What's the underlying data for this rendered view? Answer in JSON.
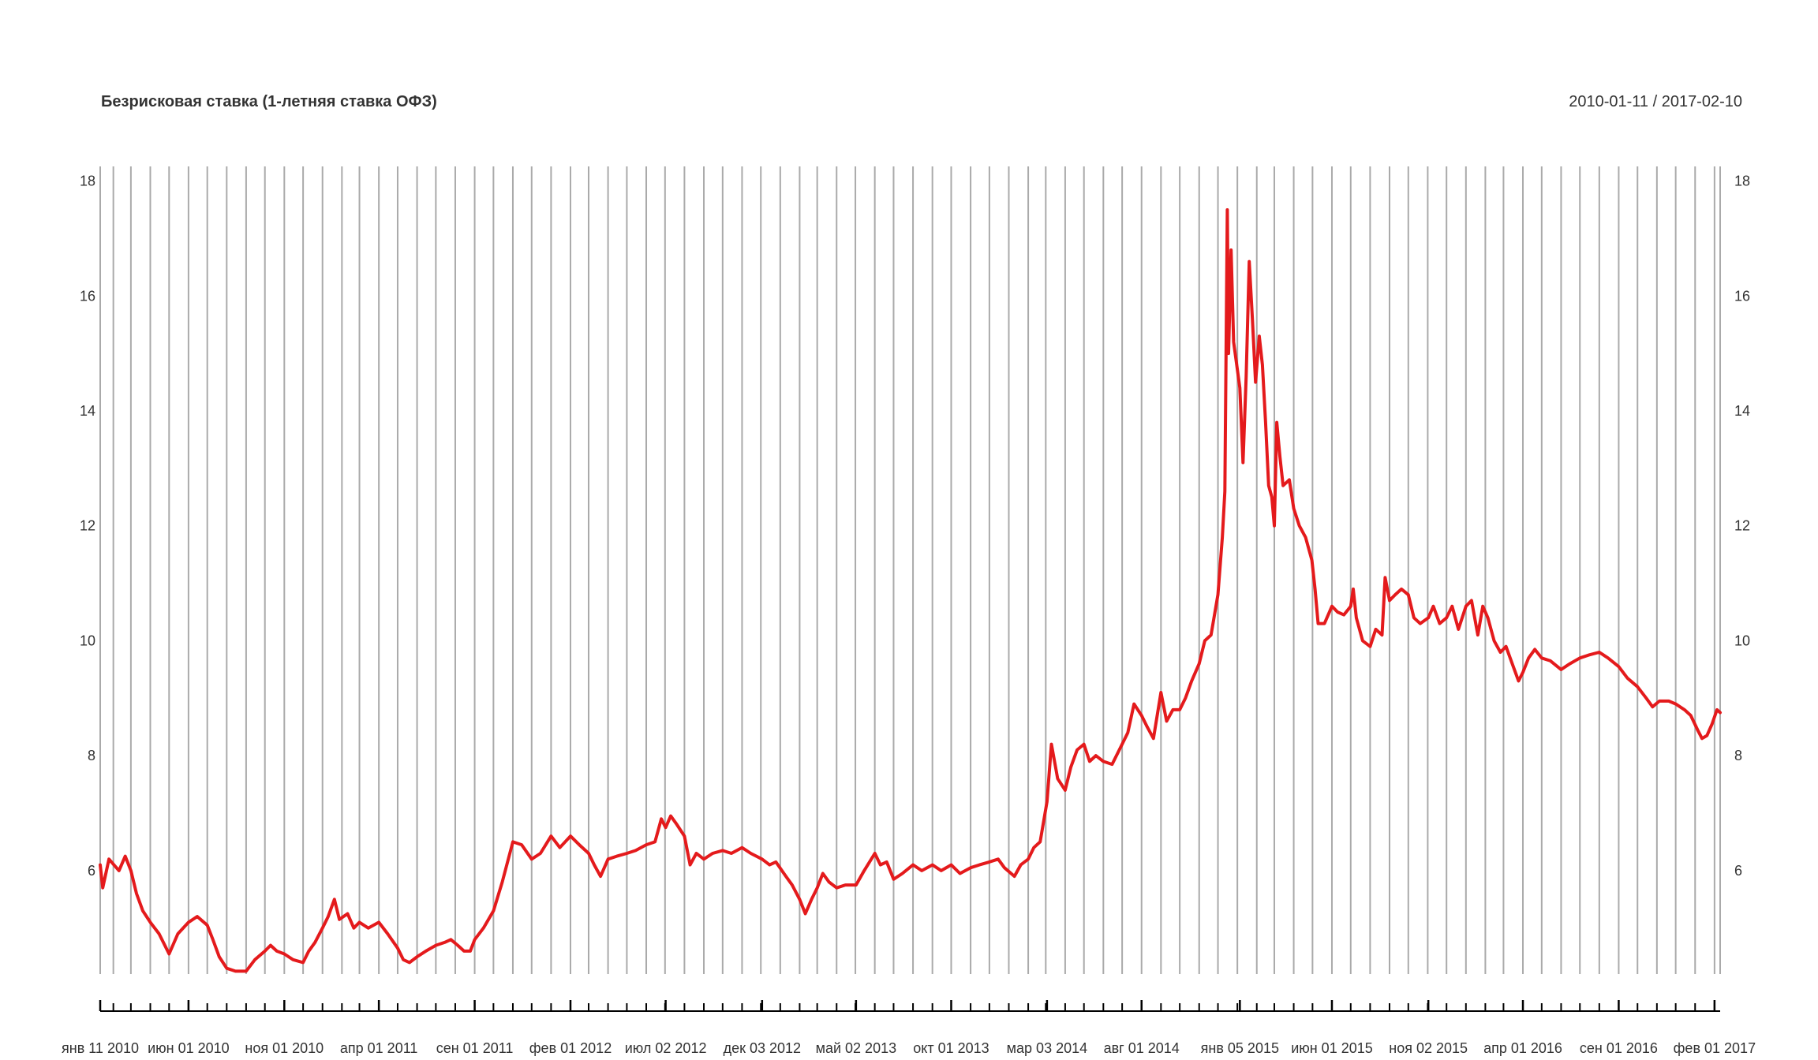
{
  "chart_data": {
    "type": "line",
    "title": "Безрисковая ставка (1-летняя ставка ОФЗ)",
    "subtitle": "2010-01-11 / 2017-02-10",
    "xlabel": "",
    "ylabel": "",
    "x_range": [
      "2010-01-11",
      "2017-02-10"
    ],
    "ylim": [
      4.2,
      18.2
    ],
    "yticks": [
      6,
      8,
      10,
      12,
      14,
      16,
      18
    ],
    "xticks": [
      {
        "date": "2010-01-11",
        "label": "янв 11 2010"
      },
      {
        "date": "2010-06-01",
        "label": "июн 01 2010"
      },
      {
        "date": "2010-11-01",
        "label": "ноя 01 2010"
      },
      {
        "date": "2011-04-01",
        "label": "апр 01 2011"
      },
      {
        "date": "2011-09-01",
        "label": "сен 01 2011"
      },
      {
        "date": "2012-02-01",
        "label": "фев 01 2012"
      },
      {
        "date": "2012-07-02",
        "label": "июл 02 2012"
      },
      {
        "date": "2012-12-03",
        "label": "дек 03 2012"
      },
      {
        "date": "2013-05-02",
        "label": "май 02 2013"
      },
      {
        "date": "2013-10-01",
        "label": "окт 01 2013"
      },
      {
        "date": "2014-03-03",
        "label": "мар 03 2014"
      },
      {
        "date": "2014-08-01",
        "label": "авг 01 2014"
      },
      {
        "date": "2015-01-05",
        "label": "янв 05 2015"
      },
      {
        "date": "2015-06-01",
        "label": "июн 01 2015"
      },
      {
        "date": "2015-11-02",
        "label": "ноя 02 2015"
      },
      {
        "date": "2016-04-01",
        "label": "апр 01 2016"
      },
      {
        "date": "2016-09-01",
        "label": "сен 01 2016"
      },
      {
        "date": "2017-02-01",
        "label": "фев 01 2017"
      }
    ],
    "grid": true,
    "colors": {
      "line": "#e41a1c",
      "grid": "#aaaaaa",
      "text": "#333333"
    },
    "series": [
      {
        "values": [
          [
            "2010-01-11",
            6.1
          ],
          [
            "2010-01-15",
            5.7
          ],
          [
            "2010-01-25",
            6.2
          ],
          [
            "2010-02-10",
            6.0
          ],
          [
            "2010-02-20",
            6.25
          ],
          [
            "2010-03-01",
            6.0
          ],
          [
            "2010-03-10",
            5.6
          ],
          [
            "2010-03-20",
            5.3
          ],
          [
            "2010-04-01",
            5.1
          ],
          [
            "2010-04-15",
            4.9
          ],
          [
            "2010-05-01",
            4.55
          ],
          [
            "2010-05-15",
            4.9
          ],
          [
            "2010-06-01",
            5.1
          ],
          [
            "2010-06-15",
            5.2
          ],
          [
            "2010-07-01",
            5.05
          ],
          [
            "2010-07-10",
            4.8
          ],
          [
            "2010-07-20",
            4.5
          ],
          [
            "2010-08-01",
            4.3
          ],
          [
            "2010-08-15",
            4.25
          ],
          [
            "2010-09-01",
            4.25
          ],
          [
            "2010-09-15",
            4.45
          ],
          [
            "2010-10-01",
            4.6
          ],
          [
            "2010-10-10",
            4.7
          ],
          [
            "2010-10-20",
            4.6
          ],
          [
            "2010-11-01",
            4.55
          ],
          [
            "2010-11-15",
            4.45
          ],
          [
            "2010-12-01",
            4.4
          ],
          [
            "2010-12-10",
            4.6
          ],
          [
            "2010-12-20",
            4.75
          ],
          [
            "2011-01-01",
            5.0
          ],
          [
            "2011-01-10",
            5.2
          ],
          [
            "2011-01-20",
            5.5
          ],
          [
            "2011-01-28",
            5.15
          ],
          [
            "2011-02-10",
            5.25
          ],
          [
            "2011-02-20",
            5.0
          ],
          [
            "2011-03-01",
            5.1
          ],
          [
            "2011-03-15",
            5.0
          ],
          [
            "2011-04-01",
            5.1
          ],
          [
            "2011-04-15",
            4.9
          ],
          [
            "2011-05-01",
            4.65
          ],
          [
            "2011-05-10",
            4.45
          ],
          [
            "2011-05-20",
            4.4
          ],
          [
            "2011-06-01",
            4.5
          ],
          [
            "2011-06-15",
            4.6
          ],
          [
            "2011-07-01",
            4.7
          ],
          [
            "2011-07-15",
            4.75
          ],
          [
            "2011-07-25",
            4.8
          ],
          [
            "2011-08-05",
            4.7
          ],
          [
            "2011-08-15",
            4.6
          ],
          [
            "2011-08-25",
            4.6
          ],
          [
            "2011-09-01",
            4.8
          ],
          [
            "2011-09-15",
            5.0
          ],
          [
            "2011-10-01",
            5.3
          ],
          [
            "2011-10-15",
            5.8
          ],
          [
            "2011-11-01",
            6.5
          ],
          [
            "2011-11-15",
            6.45
          ],
          [
            "2011-12-01",
            6.2
          ],
          [
            "2011-12-15",
            6.3
          ],
          [
            "2012-01-01",
            6.6
          ],
          [
            "2012-01-15",
            6.4
          ],
          [
            "2012-02-01",
            6.6
          ],
          [
            "2012-02-15",
            6.45
          ],
          [
            "2012-03-01",
            6.3
          ],
          [
            "2012-03-10",
            6.1
          ],
          [
            "2012-03-20",
            5.9
          ],
          [
            "2012-04-01",
            6.2
          ],
          [
            "2012-04-15",
            6.25
          ],
          [
            "2012-05-01",
            6.3
          ],
          [
            "2012-05-15",
            6.35
          ],
          [
            "2012-06-01",
            6.45
          ],
          [
            "2012-06-15",
            6.5
          ],
          [
            "2012-06-25",
            6.9
          ],
          [
            "2012-07-02",
            6.75
          ],
          [
            "2012-07-10",
            6.95
          ],
          [
            "2012-07-20",
            6.8
          ],
          [
            "2012-08-01",
            6.6
          ],
          [
            "2012-08-10",
            6.1
          ],
          [
            "2012-08-20",
            6.3
          ],
          [
            "2012-09-01",
            6.2
          ],
          [
            "2012-09-15",
            6.3
          ],
          [
            "2012-10-01",
            6.35
          ],
          [
            "2012-10-15",
            6.3
          ],
          [
            "2012-11-01",
            6.4
          ],
          [
            "2012-11-15",
            6.3
          ],
          [
            "2012-12-03",
            6.2
          ],
          [
            "2012-12-15",
            6.1
          ],
          [
            "2012-12-25",
            6.15
          ],
          [
            "2013-01-10",
            5.9
          ],
          [
            "2013-01-20",
            5.75
          ],
          [
            "2013-02-01",
            5.5
          ],
          [
            "2013-02-10",
            5.25
          ],
          [
            "2013-02-20",
            5.5
          ],
          [
            "2013-03-01",
            5.7
          ],
          [
            "2013-03-10",
            5.95
          ],
          [
            "2013-03-20",
            5.8
          ],
          [
            "2013-04-01",
            5.7
          ],
          [
            "2013-04-15",
            5.75
          ],
          [
            "2013-05-02",
            5.75
          ],
          [
            "2013-05-15",
            6.0
          ],
          [
            "2013-06-01",
            6.3
          ],
          [
            "2013-06-10",
            6.1
          ],
          [
            "2013-06-20",
            6.15
          ],
          [
            "2013-07-01",
            5.85
          ],
          [
            "2013-07-15",
            5.95
          ],
          [
            "2013-08-01",
            6.1
          ],
          [
            "2013-08-15",
            6.0
          ],
          [
            "2013-09-01",
            6.1
          ],
          [
            "2013-09-15",
            6.0
          ],
          [
            "2013-10-01",
            6.1
          ],
          [
            "2013-10-15",
            5.95
          ],
          [
            "2013-11-01",
            6.05
          ],
          [
            "2013-11-15",
            6.1
          ],
          [
            "2013-12-01",
            6.15
          ],
          [
            "2013-12-15",
            6.2
          ],
          [
            "2013-12-25",
            6.05
          ],
          [
            "2014-01-10",
            5.9
          ],
          [
            "2014-01-20",
            6.1
          ],
          [
            "2014-02-01",
            6.2
          ],
          [
            "2014-02-10",
            6.4
          ],
          [
            "2014-02-20",
            6.5
          ],
          [
            "2014-03-03",
            7.2
          ],
          [
            "2014-03-10",
            8.2
          ],
          [
            "2014-03-20",
            7.6
          ],
          [
            "2014-04-01",
            7.4
          ],
          [
            "2014-04-10",
            7.8
          ],
          [
            "2014-04-20",
            8.1
          ],
          [
            "2014-05-01",
            8.2
          ],
          [
            "2014-05-10",
            7.9
          ],
          [
            "2014-05-20",
            8.0
          ],
          [
            "2014-06-01",
            7.9
          ],
          [
            "2014-06-15",
            7.85
          ],
          [
            "2014-07-01",
            8.2
          ],
          [
            "2014-07-10",
            8.4
          ],
          [
            "2014-07-20",
            8.9
          ],
          [
            "2014-08-01",
            8.7
          ],
          [
            "2014-08-10",
            8.5
          ],
          [
            "2014-08-20",
            8.3
          ],
          [
            "2014-09-01",
            9.1
          ],
          [
            "2014-09-10",
            8.6
          ],
          [
            "2014-09-20",
            8.8
          ],
          [
            "2014-10-01",
            8.8
          ],
          [
            "2014-10-10",
            9.0
          ],
          [
            "2014-10-20",
            9.3
          ],
          [
            "2014-11-01",
            9.6
          ],
          [
            "2014-11-10",
            10.0
          ],
          [
            "2014-11-20",
            10.1
          ],
          [
            "2014-12-01",
            10.8
          ],
          [
            "2014-12-08",
            11.8
          ],
          [
            "2014-12-12",
            12.6
          ],
          [
            "2014-12-16",
            17.5
          ],
          [
            "2014-12-18",
            15.0
          ],
          [
            "2014-12-22",
            16.8
          ],
          [
            "2014-12-26",
            15.2
          ],
          [
            "2015-01-05",
            14.4
          ],
          [
            "2015-01-10",
            13.1
          ],
          [
            "2015-01-15",
            14.6
          ],
          [
            "2015-01-20",
            16.6
          ],
          [
            "2015-01-25",
            15.6
          ],
          [
            "2015-01-30",
            14.5
          ],
          [
            "2015-02-05",
            15.3
          ],
          [
            "2015-02-10",
            14.8
          ],
          [
            "2015-02-15",
            13.8
          ],
          [
            "2015-02-20",
            12.7
          ],
          [
            "2015-02-25",
            12.5
          ],
          [
            "2015-03-01",
            12.0
          ],
          [
            "2015-03-05",
            13.8
          ],
          [
            "2015-03-10",
            13.2
          ],
          [
            "2015-03-15",
            12.7
          ],
          [
            "2015-03-25",
            12.8
          ],
          [
            "2015-04-01",
            12.3
          ],
          [
            "2015-04-10",
            12.0
          ],
          [
            "2015-04-20",
            11.8
          ],
          [
            "2015-04-30",
            11.4
          ],
          [
            "2015-05-05",
            10.9
          ],
          [
            "2015-05-10",
            10.3
          ],
          [
            "2015-05-20",
            10.3
          ],
          [
            "2015-06-01",
            10.6
          ],
          [
            "2015-06-10",
            10.5
          ],
          [
            "2015-06-20",
            10.45
          ],
          [
            "2015-07-01",
            10.6
          ],
          [
            "2015-07-05",
            10.9
          ],
          [
            "2015-07-10",
            10.4
          ],
          [
            "2015-07-20",
            10.0
          ],
          [
            "2015-08-01",
            9.9
          ],
          [
            "2015-08-10",
            10.2
          ],
          [
            "2015-08-20",
            10.1
          ],
          [
            "2015-08-25",
            11.1
          ],
          [
            "2015-09-01",
            10.7
          ],
          [
            "2015-09-10",
            10.8
          ],
          [
            "2015-09-20",
            10.9
          ],
          [
            "2015-10-01",
            10.8
          ],
          [
            "2015-10-10",
            10.4
          ],
          [
            "2015-10-20",
            10.3
          ],
          [
            "2015-11-02",
            10.4
          ],
          [
            "2015-11-10",
            10.6
          ],
          [
            "2015-11-20",
            10.3
          ],
          [
            "2015-12-01",
            10.4
          ],
          [
            "2015-12-10",
            10.6
          ],
          [
            "2015-12-20",
            10.2
          ],
          [
            "2016-01-01",
            10.6
          ],
          [
            "2016-01-10",
            10.7
          ],
          [
            "2016-01-20",
            10.1
          ],
          [
            "2016-01-28",
            10.6
          ],
          [
            "2016-02-05",
            10.4
          ],
          [
            "2016-02-15",
            10.0
          ],
          [
            "2016-02-25",
            9.8
          ],
          [
            "2016-03-05",
            9.9
          ],
          [
            "2016-03-15",
            9.6
          ],
          [
            "2016-03-25",
            9.3
          ],
          [
            "2016-04-01",
            9.45
          ],
          [
            "2016-04-10",
            9.7
          ],
          [
            "2016-04-20",
            9.85
          ],
          [
            "2016-05-01",
            9.7
          ],
          [
            "2016-05-15",
            9.65
          ],
          [
            "2016-06-01",
            9.5
          ],
          [
            "2016-06-15",
            9.6
          ],
          [
            "2016-07-01",
            9.7
          ],
          [
            "2016-07-15",
            9.75
          ],
          [
            "2016-08-01",
            9.8
          ],
          [
            "2016-08-15",
            9.7
          ],
          [
            "2016-09-01",
            9.55
          ],
          [
            "2016-09-15",
            9.35
          ],
          [
            "2016-10-01",
            9.2
          ],
          [
            "2016-10-15",
            9.0
          ],
          [
            "2016-10-25",
            8.85
          ],
          [
            "2016-11-05",
            8.95
          ],
          [
            "2016-11-20",
            8.95
          ],
          [
            "2016-12-01",
            8.9
          ],
          [
            "2016-12-15",
            8.8
          ],
          [
            "2016-12-25",
            8.7
          ],
          [
            "2017-01-05",
            8.45
          ],
          [
            "2017-01-12",
            8.3
          ],
          [
            "2017-01-20",
            8.35
          ],
          [
            "2017-01-28",
            8.55
          ],
          [
            "2017-02-05",
            8.8
          ],
          [
            "2017-02-10",
            8.75
          ]
        ]
      }
    ]
  }
}
